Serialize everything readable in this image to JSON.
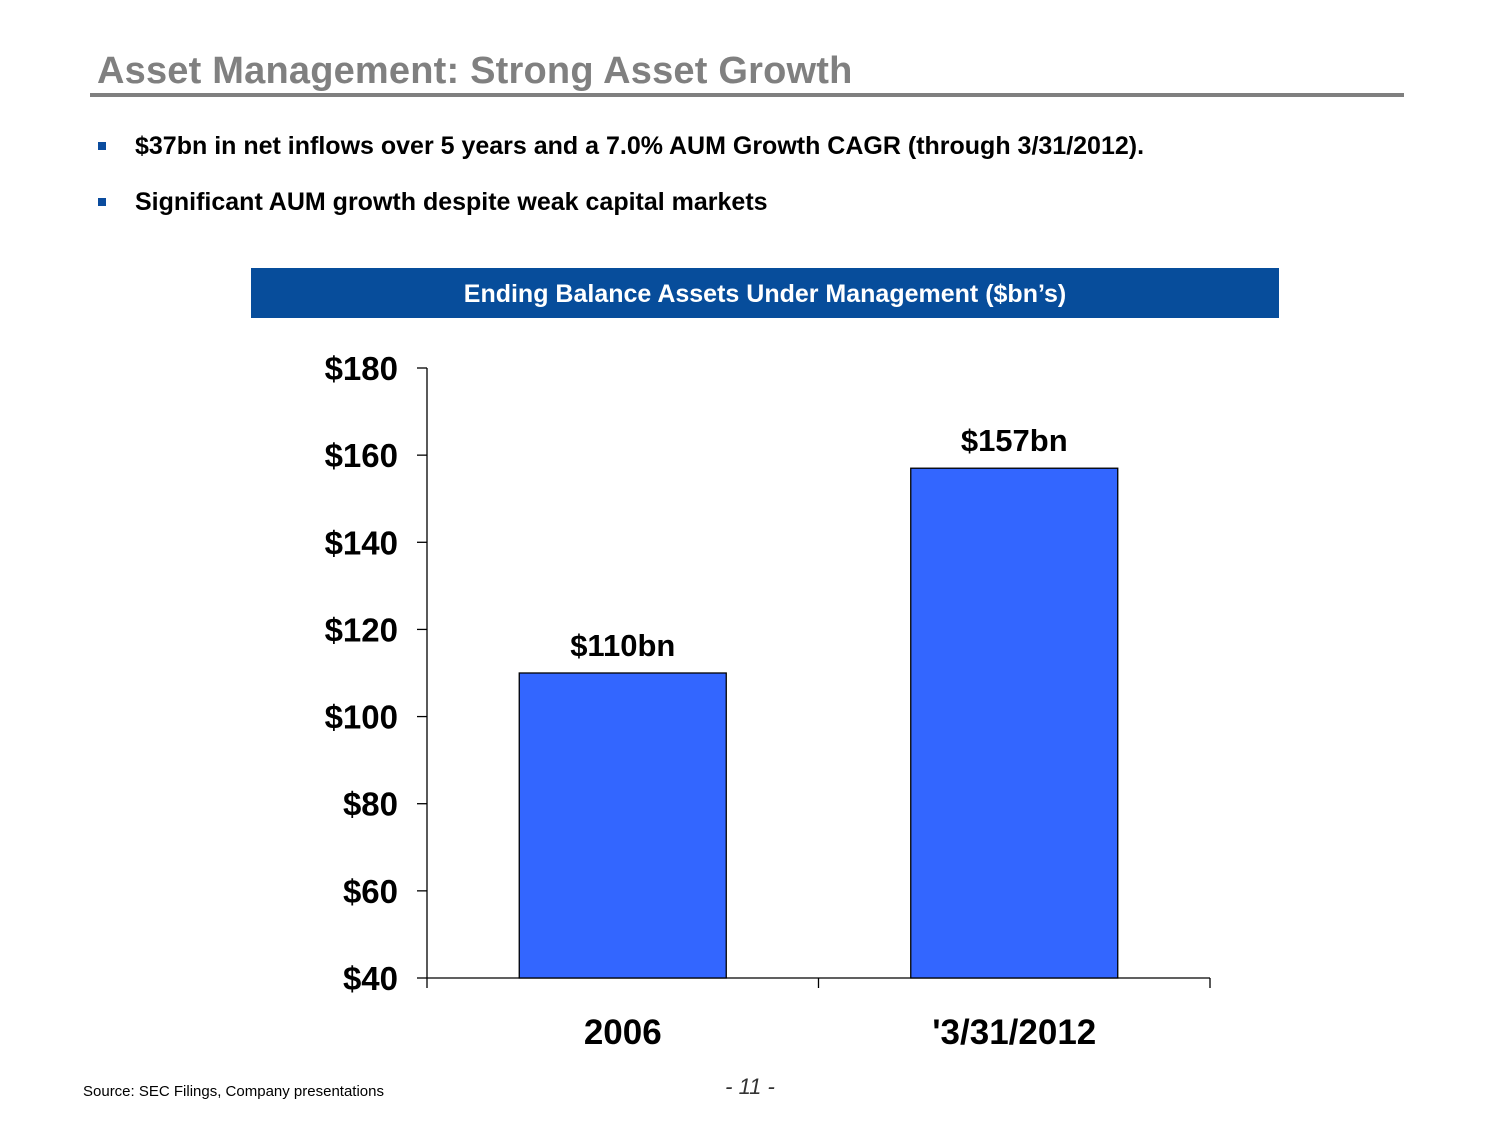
{
  "slide": {
    "title": "Asset Management:  Strong Asset Growth",
    "bullets": [
      "$37bn in net inflows over 5 years and a 7.0% AUM Growth CAGR (through 3/31/2012).",
      "Significant AUM growth despite weak capital markets"
    ],
    "source": "Source:  SEC Filings, Company presentations",
    "page_number": "- 11 -"
  },
  "colors": {
    "title": "#808080",
    "header_bg": "#074d9b",
    "bar_fill": "#3366ff",
    "bullet": "#0b4c9e"
  },
  "chart_data": {
    "type": "bar",
    "title": "Ending Balance Assets Under Management ($bn’s)",
    "categories": [
      "2006",
      "'3/31/2012"
    ],
    "values": [
      110,
      157
    ],
    "data_labels": [
      "$110bn",
      "$157bn"
    ],
    "ylim": [
      40,
      180
    ],
    "yticks": [
      40,
      60,
      80,
      100,
      120,
      140,
      160,
      180
    ],
    "ytick_labels": [
      "$40",
      "$60",
      "$80",
      "$100",
      "$120",
      "$140",
      "$160",
      "$180"
    ],
    "xlabel": "",
    "ylabel": "",
    "grid": false
  }
}
